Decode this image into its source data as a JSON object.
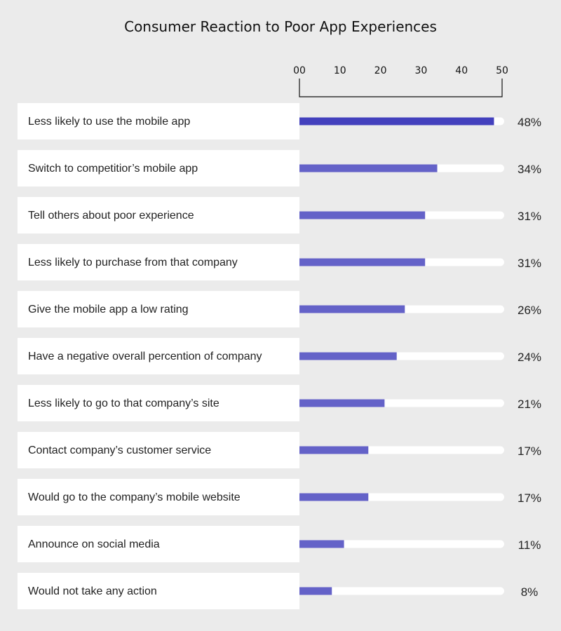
{
  "chart_data": {
    "type": "bar",
    "orientation": "horizontal",
    "title": "Consumer Reaction to Poor App Experiences",
    "xlim": [
      0,
      50
    ],
    "tick_labels": [
      "00",
      "10",
      "20",
      "30",
      "40",
      "50"
    ],
    "categories": [
      "Less likely to use the mobile app",
      "Switch to competitior’s mobile app",
      "Tell others about poor experience",
      "Less likely to purchase from that company",
      "Give the mobile app a low rating",
      "Have a negative overall percention of company",
      "Less likely to go to that company’s site",
      "Contact company’s customer service",
      "Would go to the company’s mobile website",
      "Announce on social media",
      "Would not take any action"
    ],
    "values": [
      48,
      34,
      31,
      31,
      26,
      24,
      21,
      17,
      17,
      11,
      8
    ],
    "value_labels": [
      "48%",
      "34%",
      "31%",
      "31%",
      "26%",
      "24%",
      "21%",
      "17%",
      "17%",
      "11%",
      "8%"
    ],
    "colors": {
      "highlight_bar": "#4340bd",
      "bar": "#6462c8",
      "track": "#ffffff",
      "label_box": "#ffffff",
      "background": "#ebebeb"
    }
  }
}
